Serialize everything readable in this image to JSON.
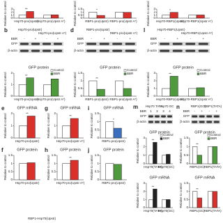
{
  "figure": {
    "charts": [
      {
        "ylabel": "Relative to control",
        "categories": [
          "Hsp70-pro(Upstr)",
          "Hsp70-pro(Upstr A*)"
        ],
        "series": [
          {
            "name": "Control",
            "color": "#ffffff",
            "values": [
              1,
              1
            ]
          },
          {
            "name": "BBR",
            "color": "#d9302c",
            "values": [
              2.2,
              1.1
            ]
          }
        ],
        "ylim": [
          0,
          3
        ],
        "yticks": [
          0,
          1,
          2,
          3
        ],
        "sig": "**"
      },
      {
        "ylabel": "Relative to control",
        "categories": [
          "RBP1-pro(Upstr)",
          "RBP1-pro(Upstr A*)"
        ],
        "series": [
          {
            "name": "Control",
            "color": "#ffffff",
            "values": [
              1,
              1
            ]
          },
          {
            "name": "BBR",
            "color": "#d9302c",
            "values": [
              0.45,
              0.95
            ]
          }
        ],
        "ylim": [
          0,
          1.5
        ],
        "yticks": [
          0,
          0.5,
          1,
          1.5
        ],
        "sig": "*"
      },
      {
        "ylabel": "Relative to control",
        "categories": [
          "Hsp70-RBP1(Upstr)",
          "Hsp70-RBP1(Upstr A*)"
        ],
        "series": [
          {
            "name": "Control",
            "color": "#ffffff",
            "values": [
              1,
              1
            ]
          },
          {
            "name": "BBR",
            "color": "#d9302c",
            "values": [
              1.9,
              1.05
            ]
          }
        ],
        "ylim": [
          0,
          3
        ],
        "yticks": [
          0,
          1,
          2,
          3
        ],
        "sig": "*"
      },
      {
        "title": "GFP protein",
        "legend": true,
        "ylabel": "Relative to control",
        "categories": [
          "Hsp70-pro(Upstr)",
          "Hsp70-pro(Upstr A*)"
        ],
        "series": [
          {
            "name": "Control",
            "color": "#ffffff",
            "values": [
              1,
              1
            ]
          },
          {
            "name": "BBR",
            "color": "#4f9a3c",
            "values": [
              1.6,
              1.5
            ]
          }
        ],
        "ylim": [
          0,
          2
        ],
        "yticks": [
          0,
          1,
          2
        ],
        "sig": "**"
      },
      {
        "title": "GFP protein",
        "legend": true,
        "ylabel": "Relative to control",
        "categories": [
          "RBP1-pro(Upstr)",
          "RBP1-pro(Upstr A*)"
        ],
        "series": [
          {
            "name": "Control",
            "color": "#ffffff",
            "values": [
              1,
              1
            ]
          },
          {
            "name": "BBR",
            "color": "#4f9a3c",
            "values": [
              0.45,
              0.5
            ]
          }
        ],
        "ylim": [
          0,
          1.5
        ],
        "yticks": [
          0,
          0.5,
          1,
          1.5
        ],
        "sig": "**"
      },
      {
        "title": "GFP protein",
        "legend": true,
        "ylabel": "Relative to control",
        "categories": [
          "Hsp70-RBP1(Upstr)",
          "Hsp70-RBP1(Upstr A*)"
        ],
        "series": [
          {
            "name": "Control",
            "color": "#ffffff",
            "values": [
              1,
              1
            ]
          },
          {
            "name": "BBR",
            "color": "#4f9a3c",
            "values": [
              2.6,
              1.1
            ]
          }
        ],
        "ylim": [
          0,
          3
        ],
        "yticks": [
          0,
          1,
          2,
          3
        ],
        "sig": "**"
      },
      {
        "letter": "e",
        "title": "GFP mRNA",
        "ylabel": "Relative to control",
        "categories": [
          "Hsp70-pro(Upstr)"
        ],
        "series": [
          {
            "name": "Control",
            "color": "#ffffff",
            "values": [
              1
            ]
          },
          {
            "name": "BBR",
            "color": "#d9302c",
            "values": [
              1.8
            ]
          }
        ],
        "ylim": [
          0,
          2
        ],
        "yticks": [
          0,
          1,
          2
        ],
        "sig": "**"
      },
      {
        "letter": "g",
        "title": "GFP mRNA",
        "ylabel": "Relative to control",
        "categories": [
          "Hsp70-pro(Upstr A*)"
        ],
        "series": [
          {
            "name": "Control",
            "color": "#ffffff",
            "values": [
              1
            ]
          },
          {
            "name": "BBR",
            "color": "#d9302c",
            "values": [
              1.6
            ]
          }
        ],
        "ylim": [
          0,
          2
        ],
        "yticks": [
          0,
          1,
          2
        ],
        "sig": "**"
      },
      {
        "letter": "i",
        "title": "GFP mRNA",
        "ylabel": "Relative to control",
        "categories": [
          "RBP1-pro(Upstr)"
        ],
        "series": [
          {
            "name": "Control",
            "color": "#ffffff",
            "values": [
              1
            ]
          },
          {
            "name": "BBR",
            "color": "#3a6fbf",
            "values": [
              0.6
            ]
          }
        ],
        "ylim": [
          0,
          1.5
        ],
        "yticks": [
          0,
          0.5,
          1,
          1.5
        ],
        "sig": "*"
      },
      {
        "letter": "f",
        "title": "GFP protein",
        "ylabel": "Relative to control",
        "categories": [
          "Hsp70-pro(Upstr)"
        ],
        "series": [
          {
            "name": "Control",
            "color": "#ffffff",
            "values": [
              1
            ]
          },
          {
            "name": "BBR",
            "color": "#d9302c",
            "values": [
              1.05
            ]
          }
        ],
        "ylim": [
          0,
          1.5
        ],
        "yticks": [
          0,
          0.5,
          1,
          1.5
        ]
      },
      {
        "letter": "h",
        "title": "GFP protein",
        "ylabel": "Relative to control",
        "categories": [
          "Hsp70-pro(Upstr A*)"
        ],
        "series": [
          {
            "name": "Control",
            "color": "#ffffff",
            "values": [
              1
            ]
          },
          {
            "name": "BBR",
            "color": "#d9302c",
            "values": [
              1.2
            ]
          }
        ],
        "ylim": [
          0,
          1.5
        ],
        "yticks": [
          0,
          0.5,
          1,
          1.5
        ],
        "sig": "**"
      },
      {
        "letter": "j",
        "title": "GFP protein",
        "ylabel": "Relative to control",
        "categories": [
          "RBP1-pro(Upstr)"
        ],
        "series": [
          {
            "name": "Control",
            "color": "#ffffff",
            "values": [
              1
            ]
          },
          {
            "name": "BBR",
            "color": "#4f9a3c",
            "values": [
              0.95
            ]
          }
        ],
        "ylim": [
          0,
          1.5
        ],
        "yticks": [
          0,
          0.5,
          1,
          1.5
        ]
      },
      {
        "title": "GFP protein",
        "legend": true,
        "ylabel": "Relative to control",
        "categories": [
          "Hsp70(TATA)",
          "Hsp70(GC)"
        ],
        "series": [
          {
            "name": "Control",
            "color": "#ffffff",
            "values": [
              1,
              1
            ]
          },
          {
            "name": "BBR",
            "color": "#222222",
            "values": [
              2.5,
              1.1
            ]
          }
        ],
        "ylim": [
          0,
          3
        ],
        "yticks": [
          0,
          1,
          2,
          3
        ],
        "sig": "**"
      },
      {
        "title": "GFP protein",
        "legend": true,
        "ylabel": "Relative to control",
        "categories": [
          "RBP1(GC)",
          "RBP1(TATA)"
        ],
        "series": [
          {
            "name": "Control",
            "color": "#ffffff",
            "values": [
              1,
              1
            ]
          },
          {
            "name": "BBR",
            "color": "#4f9a3c",
            "values": [
              0.5,
              1
            ]
          }
        ],
        "ylim": [
          0,
          1.5
        ],
        "yticks": [
          0,
          0.5,
          1,
          1.5
        ],
        "sig": "**"
      },
      {
        "title": "GFP mRNA",
        "ylabel": "Relative to control",
        "categories": [
          "Hsp70(TATA)",
          "Hsp70(GC)"
        ],
        "series": [
          {
            "name": "Control",
            "color": "#ffffff",
            "values": [
              1,
              1
            ]
          },
          {
            "name": "BBR",
            "color": "#222222",
            "values": [
              2.3,
              1
            ]
          }
        ],
        "ylim": [
          0,
          3
        ],
        "yticks": [
          0,
          1,
          2,
          3
        ],
        "sig": "**"
      },
      {
        "title": "GFP mRNA",
        "ylabel": "Relative to control",
        "categories": [
          "RBP1(GC)",
          "RBP1(TATA)"
        ],
        "series": [
          {
            "name": "Control",
            "color": "#ffffff",
            "values": [
              1,
              1
            ]
          },
          {
            "name": "BBR",
            "color": "#d9302c",
            "values": [
              0.6,
              1
            ]
          }
        ],
        "ylim": [
          0,
          1.5
        ],
        "yticks": [
          0,
          0.5,
          1,
          1.5
        ],
        "sig": "**"
      }
    ],
    "blots": [
      {
        "letter": "b",
        "headers": [
          "Hsp70-pro(Upstr)",
          "Hsp70-pro(Upstr A*)"
        ],
        "treatment": "BBR",
        "lanes": [
          "-",
          "+",
          "-",
          "+"
        ],
        "rows": [
          "GFP",
          "β-actin"
        ]
      },
      {
        "letter": "d",
        "headers": [
          "RBP1-pro(Upstr)",
          "RBP1-pro(Upstr A*)"
        ],
        "treatment": "BBR",
        "lanes": [
          "-",
          "+",
          "-",
          "+"
        ],
        "rows": [
          "GFP",
          "β-actin"
        ]
      },
      {
        "letter": "l",
        "headers": [
          "Hsp70-RBP1(Upstr)",
          "Hsp70-RBP1(Upstr A*)"
        ],
        "treatment": "BBR",
        "lanes": [
          "-",
          "+",
          "-",
          "+"
        ],
        "rows": [
          "GFP",
          "β-actin"
        ]
      },
      {
        "letter": "m",
        "headers": [
          "Hsp70 TATA",
          "Hsp70 GC"
        ],
        "treatment": "BBR",
        "lanes": [
          "1",
          "2",
          "3",
          "4"
        ],
        "rows": [
          "GFP",
          "β-actin"
        ]
      },
      {
        "letter": "n",
        "headers": [
          "RBP1(GC)",
          "RBP1(TATA)"
        ],
        "treatment": "BBR",
        "lanes": [
          "-",
          "+",
          "-",
          "+"
        ],
        "rows": [
          "GFP",
          "β-actin"
        ]
      }
    ],
    "footer": "RBP1-Hsp70(Upstr)"
  }
}
